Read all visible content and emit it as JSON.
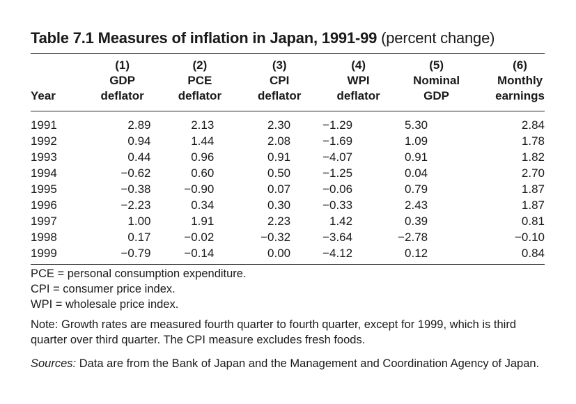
{
  "table": {
    "title_bold": "Table 7.1  Measures of inflation in Japan, 1991-99",
    "title_paren": "(percent change)",
    "columns": [
      {
        "number": "(1)",
        "line1": "GDP",
        "line2": "deflator"
      },
      {
        "number": "(2)",
        "line1": "PCE",
        "line2": "deflator"
      },
      {
        "number": "(3)",
        "line1": "CPI",
        "line2": "deflator"
      },
      {
        "number": "(4)",
        "line1": "WPI",
        "line2": "deflator"
      },
      {
        "number": "(5)",
        "line1": "Nominal",
        "line2": "GDP"
      },
      {
        "number": "(6)",
        "line1": "Monthly",
        "line2": "earnings"
      }
    ],
    "year_header": "Year",
    "rows": [
      {
        "year": "1991",
        "values": [
          "2.89",
          "2.13",
          "2.30",
          "−1.29",
          "5.30",
          "2.84"
        ]
      },
      {
        "year": "1992",
        "values": [
          "0.94",
          "1.44",
          "2.08",
          "−1.69",
          "1.09",
          "1.78"
        ]
      },
      {
        "year": "1993",
        "values": [
          "0.44",
          "0.96",
          "0.91",
          "−4.07",
          "0.91",
          "1.82"
        ]
      },
      {
        "year": "1994",
        "values": [
          "−0.62",
          "0.60",
          "0.50",
          "−1.25",
          "0.04",
          "2.70"
        ]
      },
      {
        "year": "1995",
        "values": [
          "−0.38",
          "−0.90",
          "0.07",
          "−0.06",
          "0.79",
          "1.87"
        ]
      },
      {
        "year": "1996",
        "values": [
          "−2.23",
          "0.34",
          "0.30",
          "−0.33",
          "2.43",
          "1.87"
        ]
      },
      {
        "year": "1997",
        "values": [
          "1.00",
          "1.91",
          "2.23",
          "1.42",
          "0.39",
          "0.81"
        ]
      },
      {
        "year": "1998",
        "values": [
          "0.17",
          "−0.02",
          "−0.32",
          "−3.64",
          "−2.78",
          "−0.10"
        ]
      },
      {
        "year": "1999",
        "values": [
          "−0.79",
          "−0.14",
          "0.00",
          "−4.12",
          "0.12",
          "0.84"
        ]
      }
    ]
  },
  "notes": {
    "abbreviations": [
      "PCE = personal consumption expenditure.",
      "CPI = consumer price index.",
      "WPI = wholesale price index."
    ],
    "note": "Note: Growth rates are measured fourth quarter to fourth quarter, except for 1999, which is third quarter over third quarter. The CPI measure excludes fresh foods.",
    "sources_label": "Sources:",
    "sources_text": " Data are from the Bank of Japan and the Management and Coordination Agency of Japan."
  }
}
